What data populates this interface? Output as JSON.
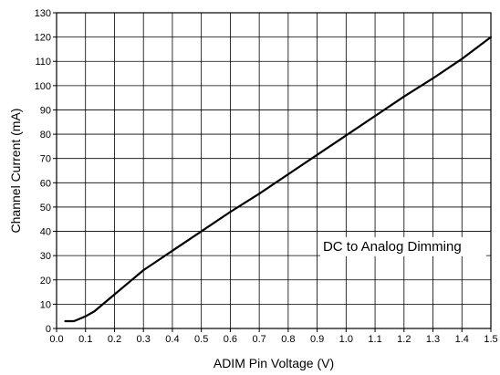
{
  "chart_data": {
    "type": "line",
    "title": "",
    "xlabel": "ADIM Pin Voltage (V)",
    "ylabel": "Channel Current (mA)",
    "xlim": [
      0.0,
      1.5
    ],
    "ylim": [
      0,
      130
    ],
    "xticks": [
      "0.0",
      "0.1",
      "0.2",
      "0.3",
      "0.4",
      "0.5",
      "0.6",
      "0.7",
      "0.8",
      "0.9",
      "1.0",
      "1.1",
      "1.2",
      "1.3",
      "1.4",
      "1.5"
    ],
    "yticks": [
      "0",
      "10",
      "20",
      "30",
      "40",
      "50",
      "60",
      "70",
      "80",
      "90",
      "100",
      "110",
      "120",
      "130"
    ],
    "grid": true,
    "legend": "none",
    "annotation": "DC to Analog Dimming",
    "series": [
      {
        "color": "#000000",
        "x": [
          0.03,
          0.06,
          0.08,
          0.1,
          0.13,
          0.16,
          0.2,
          0.25,
          0.3,
          0.35,
          0.4,
          0.45,
          0.5,
          0.6,
          0.7,
          0.8,
          0.9,
          1.0,
          1.1,
          1.2,
          1.3,
          1.35,
          1.4,
          1.45,
          1.5
        ],
        "y": [
          3,
          3,
          4,
          5,
          7,
          10,
          14,
          19,
          24,
          28,
          32,
          36,
          40,
          48,
          55.5,
          63.5,
          71.5,
          79.5,
          87.5,
          95.5,
          103,
          107,
          111,
          115.5,
          120
        ]
      }
    ]
  }
}
